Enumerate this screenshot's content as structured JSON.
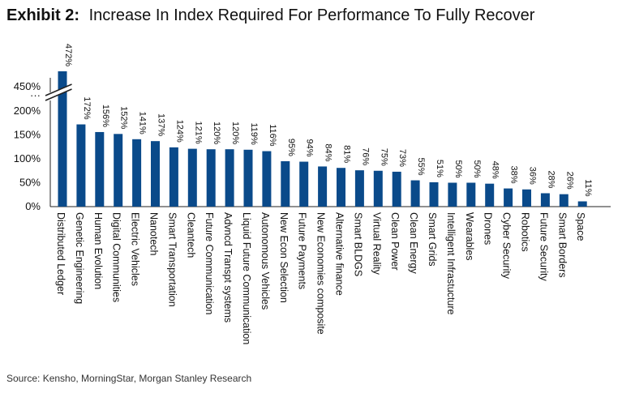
{
  "exhibit_label": "Exhibit 2:",
  "title": "Increase In Index Required For Performance To Fully Recover",
  "source": "Source: Kensho, MorningStar, Morgan Stanley Research",
  "colors": {
    "bar": "#0a4a8a",
    "axis": "#222222"
  },
  "chart_data": {
    "type": "bar",
    "title": "Increase In Index Required For Performance To Fully Recover",
    "categories": [
      "Distributed Ledger",
      "Genetic Engineering",
      "Human Evolution",
      "Digital Communities",
      "Electric Vehicles",
      "Nanotech",
      "Smart Transportation",
      "Cleantech",
      "Future Communication",
      "Advncd Transpt systems",
      "Liquid Future Communication",
      "Autonomous Vehicles",
      "New Econ Selection",
      "Future Payments",
      "New Economies composite",
      "Alternative finance",
      "Smart BLDGS",
      "Virtual Reality",
      "Clean Power",
      "Clean Energy",
      "Smart Grids",
      "Intelligent Infrastucture",
      "Wearables",
      "Drones",
      "Cyber Security",
      "Robotics",
      "Future Security",
      "Smart Borders",
      "Space"
    ],
    "values": [
      472,
      172,
      156,
      152,
      141,
      137,
      124,
      121,
      120,
      120,
      119,
      116,
      95,
      94,
      84,
      81,
      76,
      75,
      73,
      55,
      51,
      50,
      50,
      48,
      38,
      36,
      28,
      26,
      11
    ],
    "data_labels": [
      "472%",
      "172%",
      "156%",
      "152%",
      "141%",
      "137%",
      "124%",
      "121%",
      "120%",
      "120%",
      "119%",
      "116%",
      "95%",
      "94%",
      "84%",
      "81%",
      "76%",
      "75%",
      "73%",
      "55%",
      "51%",
      "50%",
      "50%",
      "48%",
      "38%",
      "36%",
      "28%",
      "26%",
      "11%"
    ],
    "y_ticks": [
      "0%",
      "50%",
      "100%",
      "150%",
      "200%",
      "···",
      "450%"
    ],
    "ylim": [
      0,
      220
    ],
    "axis_break": {
      "from": 220,
      "to": 450,
      "break_marker": "···"
    },
    "xlabel": "",
    "ylabel": "",
    "grid": false,
    "legend": "none"
  }
}
